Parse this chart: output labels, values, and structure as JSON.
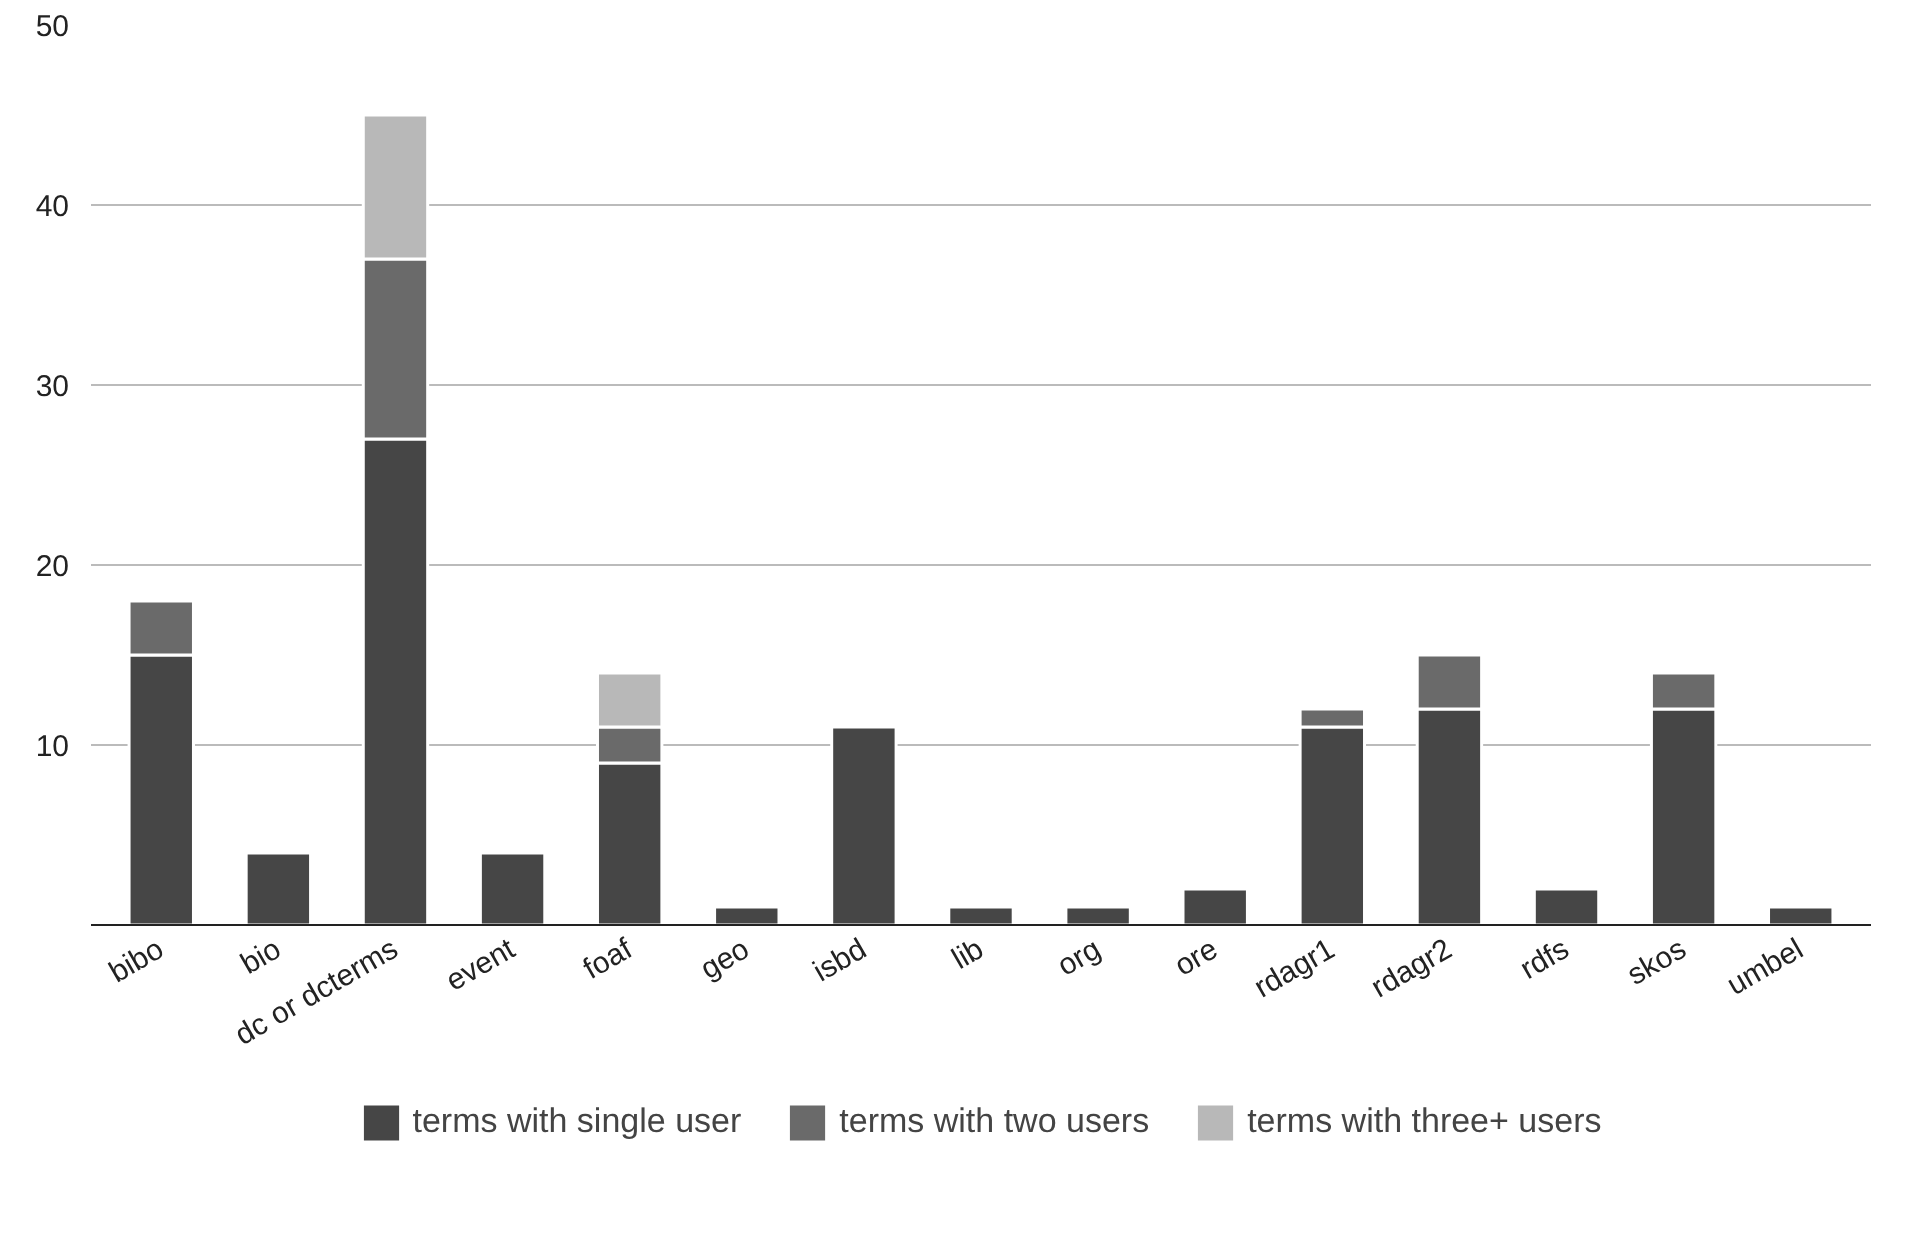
{
  "chart_data": {
    "type": "bar",
    "stacked": true,
    "categories": [
      "bibo",
      "bio",
      "dc or dcterms",
      "event",
      "foaf",
      "geo",
      "isbd",
      "lib",
      "org",
      "ore",
      "rdagr1",
      "rdagr2",
      "rdfs",
      "skos",
      "umbel"
    ],
    "series": [
      {
        "name": "terms with single user",
        "color": "#464646",
        "values": [
          15,
          4,
          27,
          4,
          9,
          1,
          11,
          1,
          1,
          2,
          11,
          12,
          2,
          12,
          1
        ]
      },
      {
        "name": "terms with two users",
        "color": "#6a6a6a",
        "values": [
          3,
          0,
          10,
          0,
          2,
          0,
          0,
          0,
          0,
          0,
          1,
          3,
          0,
          2,
          0
        ]
      },
      {
        "name": "terms with three+ users",
        "color": "#b8b8b8",
        "values": [
          0,
          0,
          8,
          0,
          3,
          0,
          0,
          0,
          0,
          0,
          0,
          0,
          0,
          0,
          0
        ]
      }
    ],
    "ylim": [
      0,
      50
    ],
    "yticks": [
      10,
      20,
      30,
      40,
      50
    ],
    "grid": "y",
    "legend": "bottom"
  }
}
